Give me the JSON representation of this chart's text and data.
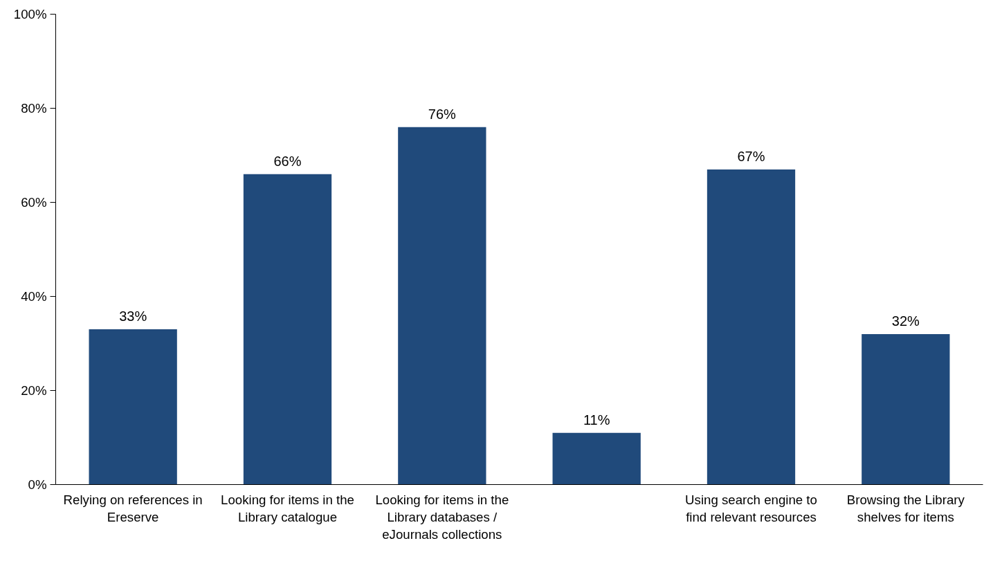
{
  "chart_data": {
    "type": "bar",
    "categories": [
      "Relying on references in Ereserve",
      "Looking for items in the Library catalogue",
      "Looking for items in the Library databases / eJournals collections",
      null,
      "Using search engine to find relevant resources",
      "Browsing the Library shelves for items"
    ],
    "values": [
      33,
      66,
      76,
      11,
      67,
      32
    ],
    "value_labels": [
      "33%",
      "66%",
      "76%",
      "11%",
      "67%",
      "32%"
    ],
    "color": "#204a7b",
    "ylim": [
      0,
      100
    ],
    "yticks": [
      {
        "value": 0,
        "label": "0%"
      },
      {
        "value": 20,
        "label": "20%"
      },
      {
        "value": 40,
        "label": "40%"
      },
      {
        "value": 60,
        "label": "60%"
      },
      {
        "value": 80,
        "label": "80%"
      },
      {
        "value": 100,
        "label": "100%"
      }
    ],
    "grid": false
  }
}
